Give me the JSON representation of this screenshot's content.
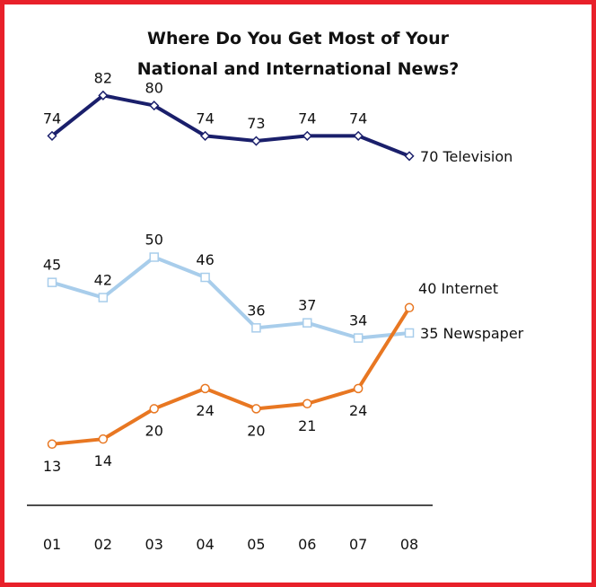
{
  "chart_data": {
    "type": "line",
    "title_line1": "Where Do You Get Most of Your",
    "title_line2": "National and International News?",
    "categories": [
      "01",
      "02",
      "03",
      "04",
      "05",
      "06",
      "07",
      "08"
    ],
    "series": [
      {
        "name": "Television",
        "values": [
          74,
          82,
          80,
          74,
          73,
          74,
          74,
          70
        ],
        "color": "#1a1f6b",
        "marker": "diamond",
        "end_label": "70 Television"
      },
      {
        "name": "Newspaper",
        "values": [
          45,
          42,
          50,
          46,
          36,
          37,
          34,
          35
        ],
        "color": "#a8cdeb",
        "marker": "square",
        "end_label": "35 Newspaper"
      },
      {
        "name": "Internet",
        "values": [
          13,
          14,
          20,
          24,
          20,
          21,
          24,
          40
        ],
        "color": "#e87722",
        "marker": "circle",
        "end_label": "40 Internet"
      }
    ],
    "border_color": "#e8202a",
    "grid": false
  }
}
